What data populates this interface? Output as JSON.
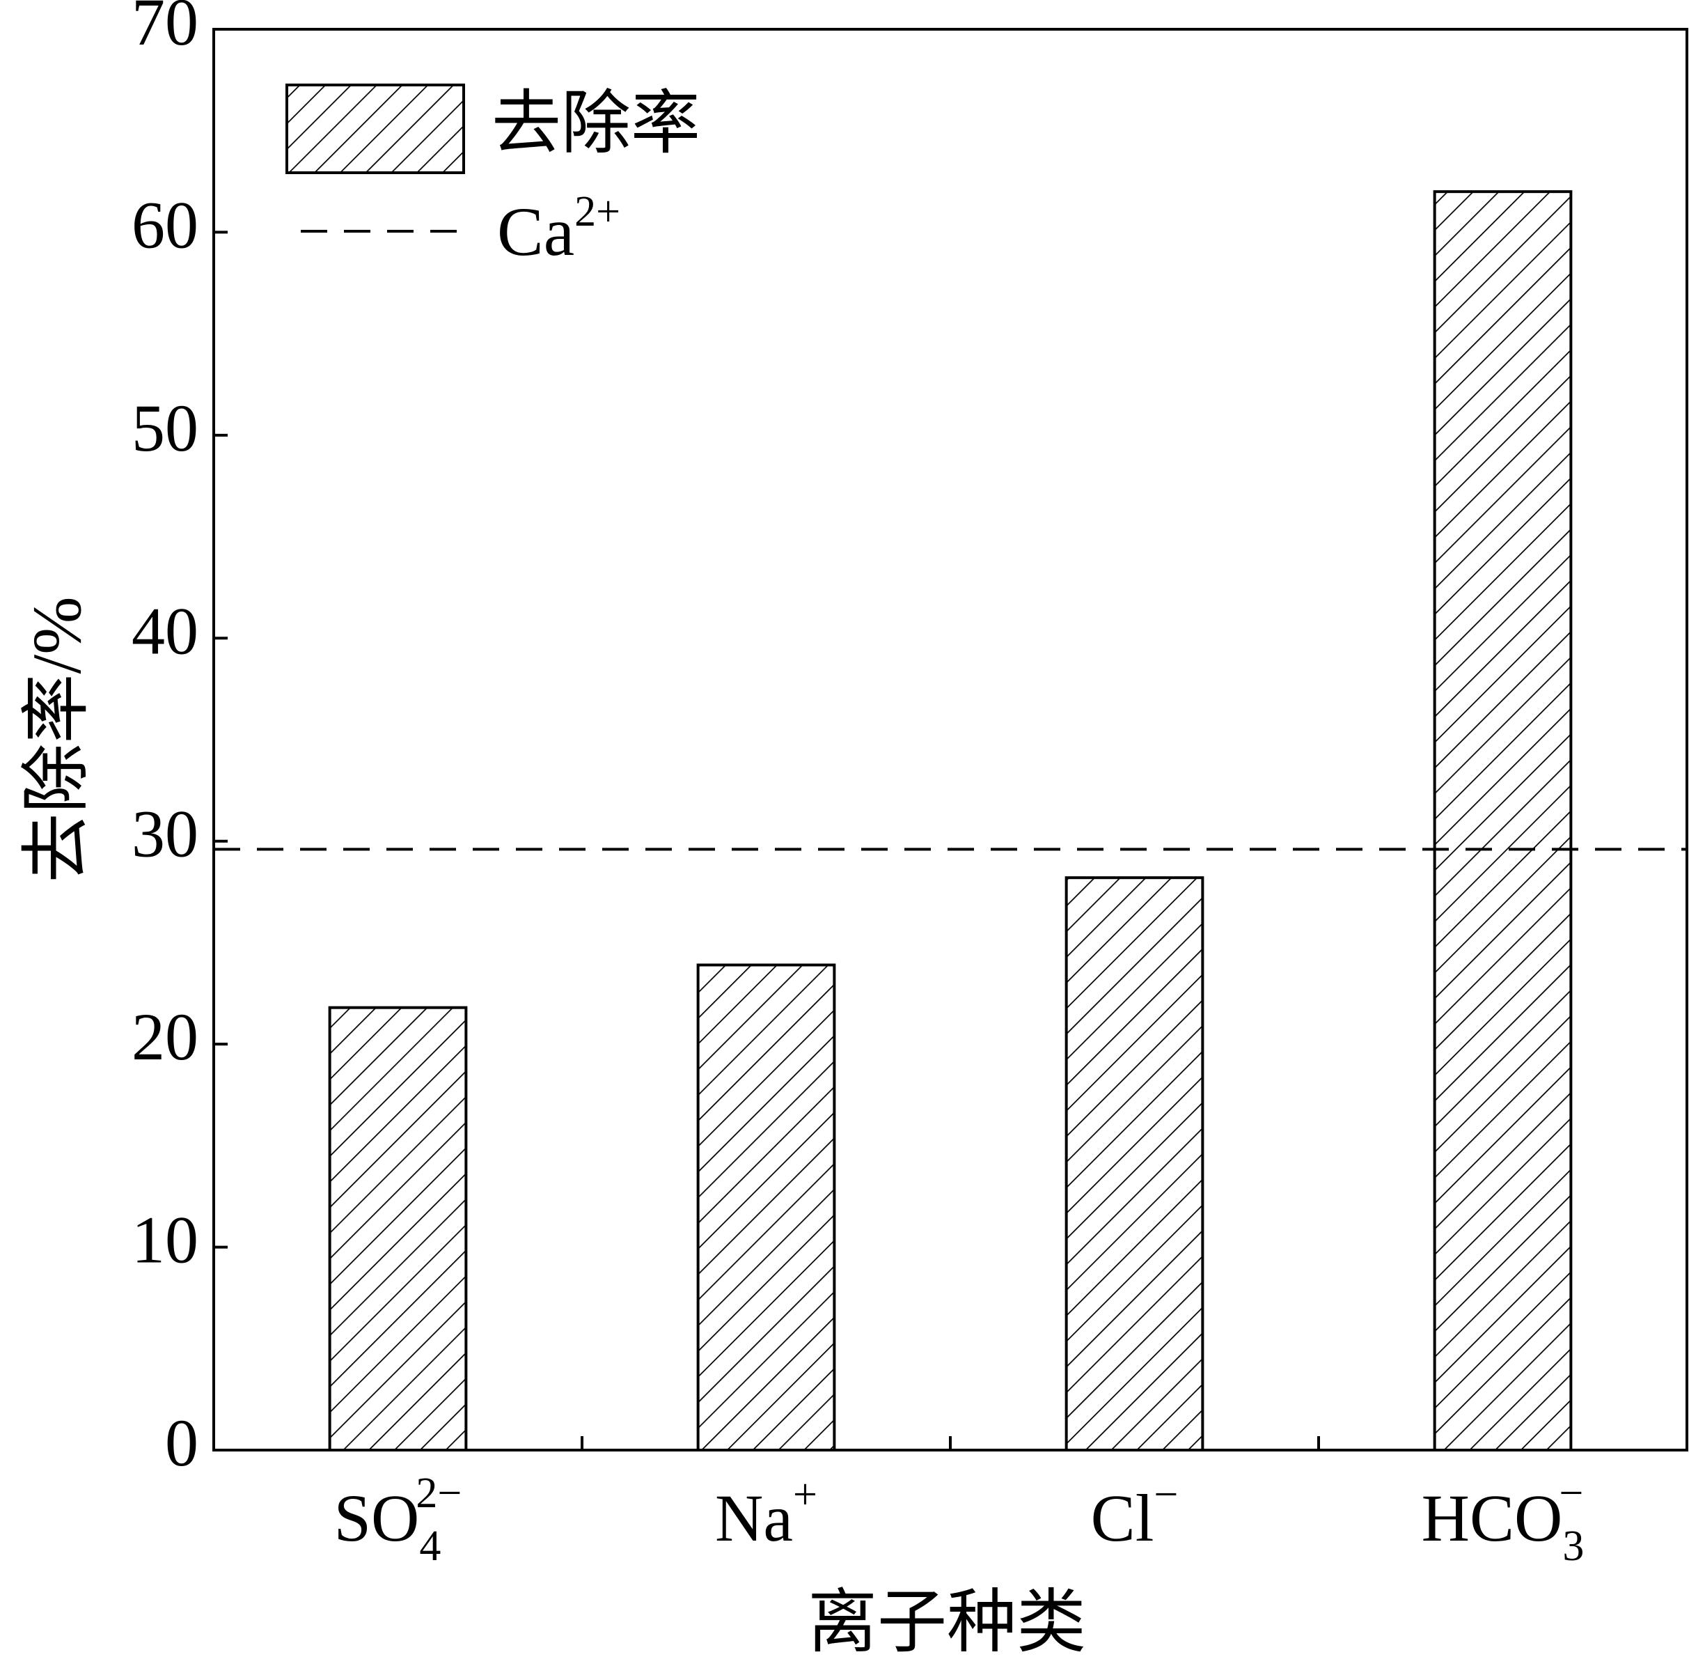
{
  "chart_data": {
    "type": "bar",
    "categories": [
      {
        "base": "SO",
        "sub": "4",
        "sup": "2−"
      },
      {
        "base": "Na",
        "sub": "",
        "sup": "+"
      },
      {
        "base": "Cl",
        "sub": "",
        "sup": "−"
      },
      {
        "base": "HCO",
        "sub": "3",
        "sup": "−"
      }
    ],
    "series": [
      {
        "name": "去除率",
        "values": [
          21.8,
          23.9,
          28.2,
          62.0
        ]
      }
    ],
    "reference_line": {
      "name": "Ca",
      "name_sup": "2+",
      "value": 29.6,
      "style": "dashed"
    },
    "xlabel": "离子种类",
    "ylabel": "去除率/%",
    "ylim": [
      0,
      70
    ],
    "yticks": [
      0,
      10,
      20,
      30,
      40,
      50,
      60,
      70
    ],
    "grid": false,
    "legend_position": "top-left",
    "bar_fill": "diagonal-hatch",
    "colors": {
      "stroke": "#000000",
      "background": "#ffffff"
    }
  }
}
